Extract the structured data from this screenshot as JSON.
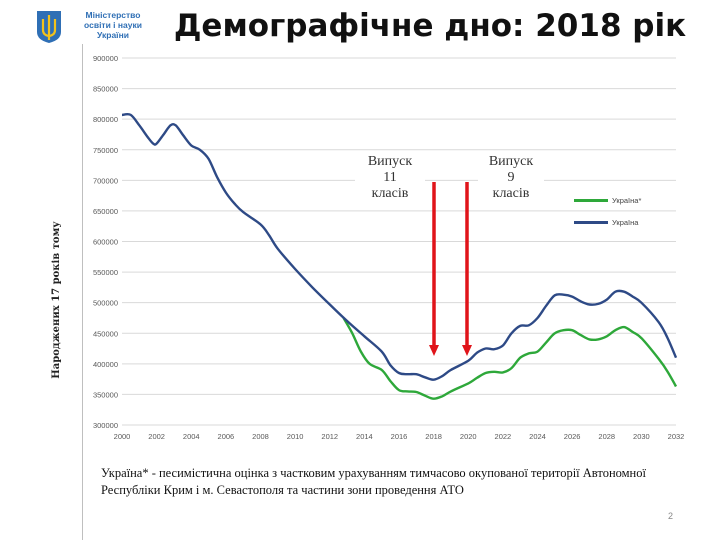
{
  "header": {
    "logo_text": [
      "Міністерство",
      "освіти і науки",
      "України"
    ],
    "title": "Демографічне дно: 2018 рік"
  },
  "chart_data": {
    "type": "line",
    "title": "",
    "ylabel": "Народжених  17 років тому",
    "xlabel": "",
    "xlim": [
      2000,
      2032
    ],
    "ylim": [
      300000,
      900000
    ],
    "x_ticks": [
      "2000",
      "2002",
      "2004",
      "2006",
      "2008",
      "2010",
      "2012",
      "2014",
      "2016",
      "2018",
      "2020",
      "2022",
      "2024",
      "2026",
      "2028",
      "2030",
      "2032"
    ],
    "y_ticks": [
      "900000",
      "850000",
      "800000",
      "750000",
      "700000",
      "650000",
      "600000",
      "550000",
      "500000",
      "450000",
      "400000",
      "350000",
      "300000"
    ],
    "grid": true,
    "legend_position": "right",
    "series": [
      {
        "name": "Україна",
        "color": "#2e4a86",
        "points": [
          [
            2000,
            807000
          ],
          [
            2000.5,
            807000
          ],
          [
            2001,
            790000
          ],
          [
            2001.5,
            770000
          ],
          [
            2001.8,
            760000
          ],
          [
            2002,
            760000
          ],
          [
            2002.4,
            775000
          ],
          [
            2002.8,
            790000
          ],
          [
            2003.1,
            790000
          ],
          [
            2003.5,
            775000
          ],
          [
            2004,
            757000
          ],
          [
            2004.5,
            750000
          ],
          [
            2005,
            735000
          ],
          [
            2005.5,
            705000
          ],
          [
            2006,
            680000
          ],
          [
            2006.5,
            662000
          ],
          [
            2007,
            648000
          ],
          [
            2008,
            628000
          ],
          [
            2008.5,
            610000
          ],
          [
            2009,
            588000
          ],
          [
            2010,
            555000
          ],
          [
            2011,
            525000
          ],
          [
            2012,
            497000
          ],
          [
            2013,
            470000
          ],
          [
            2014,
            445000
          ],
          [
            2015,
            420000
          ],
          [
            2015.5,
            398000
          ],
          [
            2016,
            385000
          ],
          [
            2016.5,
            383000
          ],
          [
            2017,
            383000
          ],
          [
            2017.5,
            378000
          ],
          [
            2018,
            374000
          ],
          [
            2018.5,
            380000
          ],
          [
            2019,
            390000
          ],
          [
            2020,
            405000
          ],
          [
            2020.5,
            418000
          ],
          [
            2021,
            425000
          ],
          [
            2021.5,
            424000
          ],
          [
            2022,
            430000
          ],
          [
            2022.5,
            450000
          ],
          [
            2023,
            462000
          ],
          [
            2023.5,
            463000
          ],
          [
            2024,
            475000
          ],
          [
            2024.5,
            495000
          ],
          [
            2025,
            512000
          ],
          [
            2025.5,
            513000
          ],
          [
            2026,
            510000
          ],
          [
            2026.5,
            502000
          ],
          [
            2027,
            497000
          ],
          [
            2027.5,
            498000
          ],
          [
            2028,
            505000
          ],
          [
            2028.5,
            518000
          ],
          [
            2029,
            518000
          ],
          [
            2029.5,
            510000
          ],
          [
            2030,
            500000
          ],
          [
            2031,
            468000
          ],
          [
            2031.5,
            443000
          ],
          [
            2032,
            410000
          ]
        ]
      },
      {
        "name": "Україна*",
        "color": "#2ea83a",
        "points": [
          [
            2012.8,
            475000
          ],
          [
            2013.3,
            450000
          ],
          [
            2013.8,
            420000
          ],
          [
            2014.3,
            400000
          ],
          [
            2015,
            390000
          ],
          [
            2015.5,
            372000
          ],
          [
            2016,
            357000
          ],
          [
            2016.5,
            355000
          ],
          [
            2017,
            354000
          ],
          [
            2017.5,
            348000
          ],
          [
            2018,
            343000
          ],
          [
            2018.5,
            347000
          ],
          [
            2019,
            355000
          ],
          [
            2020,
            368000
          ],
          [
            2020.5,
            377000
          ],
          [
            2021,
            385000
          ],
          [
            2021.5,
            387000
          ],
          [
            2022,
            386000
          ],
          [
            2022.5,
            393000
          ],
          [
            2023,
            410000
          ],
          [
            2023.5,
            417000
          ],
          [
            2024,
            420000
          ],
          [
            2024.5,
            435000
          ],
          [
            2025,
            450000
          ],
          [
            2025.5,
            455000
          ],
          [
            2026,
            455000
          ],
          [
            2026.5,
            447000
          ],
          [
            2027,
            440000
          ],
          [
            2027.5,
            440000
          ],
          [
            2028,
            445000
          ],
          [
            2028.5,
            455000
          ],
          [
            2029,
            460000
          ],
          [
            2029.5,
            452000
          ],
          [
            2030,
            442000
          ],
          [
            2031,
            408000
          ],
          [
            2031.5,
            388000
          ],
          [
            2032,
            363000
          ]
        ]
      }
    ],
    "annotations": [
      {
        "label": "Випуск\n11\nкласів",
        "arrow_x": 2018,
        "arrow_to": 377000
      },
      {
        "label": "Випуск\n9\nкласів",
        "arrow_x": 2020,
        "arrow_to": 377000
      }
    ]
  },
  "callouts": {
    "grade11": "Випуск\n11\nкласів",
    "grade9": "Випуск\n9\nкласів"
  },
  "legend": {
    "items": [
      {
        "label": "Україна*",
        "color": "#2ea83a"
      },
      {
        "label": "Україна",
        "color": "#2e4a86"
      }
    ]
  },
  "footnote": "Україна* - песимістична оцінка з частковим урахуванням тимчасово окупованої території Автономної Республіки Крим і м. Севастополя та частини зони проведення АТО",
  "page_number": "2",
  "colors": {
    "arrow": "#e0141a",
    "grid": "#d9d9d9",
    "axis_text": "#595959"
  }
}
